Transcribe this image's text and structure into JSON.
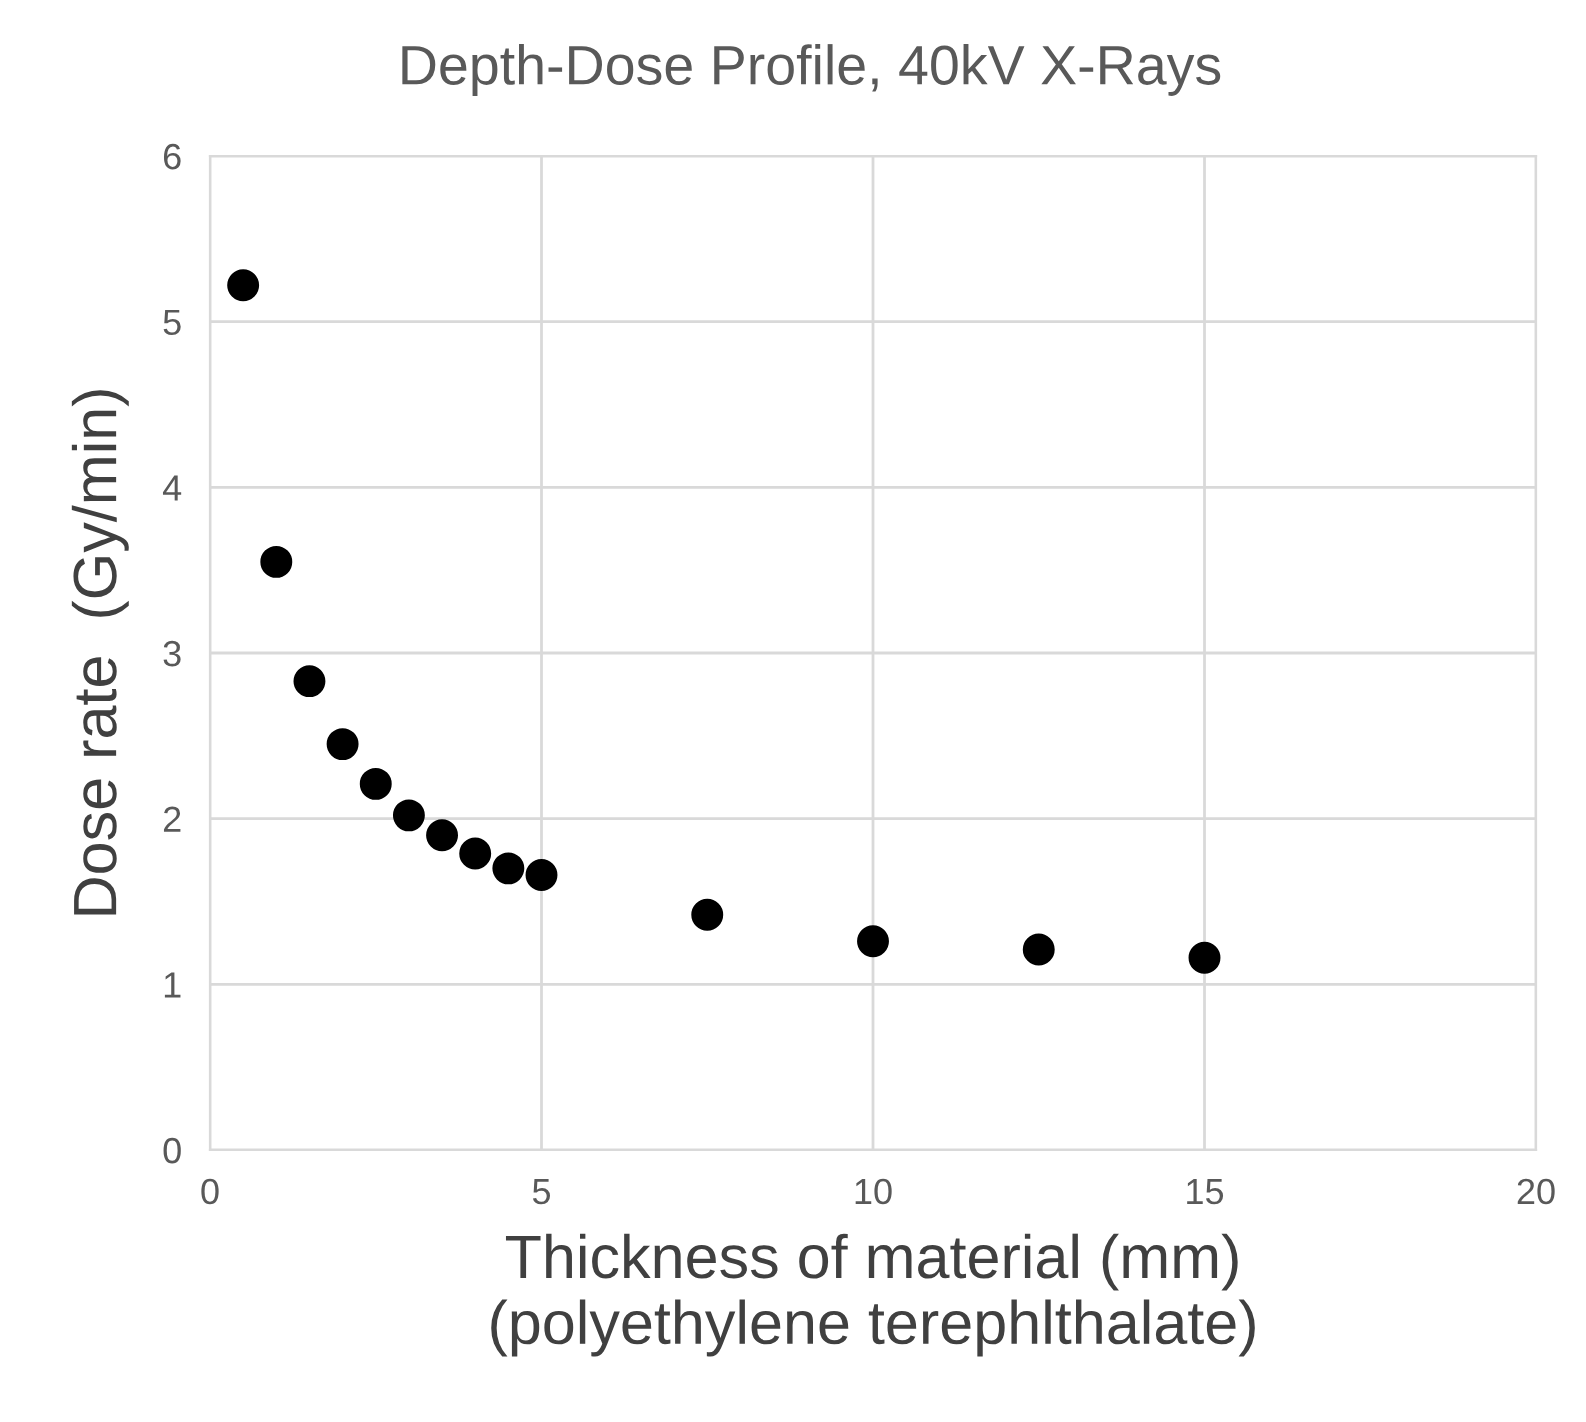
{
  "chart_data": {
    "type": "scatter",
    "title": "Depth-Dose Profile, 40kV X-Rays",
    "xlabel": "Thickness of material (mm)\n(polyethylene terephlthalate)",
    "ylabel": "Dose rate  (Gy/min)",
    "x": [
      0.5,
      1,
      1.5,
      2,
      2.5,
      3,
      3.5,
      4,
      4.5,
      5,
      7.5,
      10,
      12.5,
      15
    ],
    "series": [
      {
        "color": "#000000",
        "values": [
          5.22,
          3.55,
          2.83,
          2.45,
          2.21,
          2.02,
          1.9,
          1.79,
          1.7,
          1.66,
          1.42,
          1.26,
          1.21,
          1.16
        ]
      }
    ],
    "xlim": [
      0,
      20
    ],
    "ylim": [
      0,
      6
    ],
    "xticks": [
      0,
      5,
      10,
      15,
      20
    ],
    "yticks": [
      0,
      1,
      2,
      3,
      4,
      5,
      6
    ],
    "grid": true,
    "marker": "circle"
  }
}
